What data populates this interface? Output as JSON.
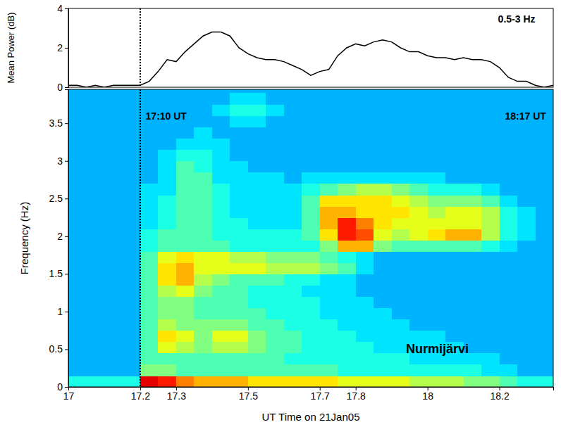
{
  "chart_data": [
    {
      "type": "line",
      "ylabel": "Mean Power (dB)",
      "xlim": [
        17,
        18.35
      ],
      "ylim": [
        0,
        4
      ],
      "yticks": [
        0,
        2,
        4
      ],
      "tick_labels": "y",
      "annotations": [
        {
          "text": "0.5-3 Hz",
          "x": 18.3,
          "y": 3.3
        }
      ],
      "reference_lines": [
        {
          "x": 17.2,
          "line_style": "dotted"
        }
      ],
      "x": [
        17,
        17.025,
        17.05,
        17.075,
        17.1,
        17.125,
        17.15,
        17.175,
        17.2,
        17.225,
        17.25,
        17.275,
        17.3,
        17.325,
        17.35,
        17.375,
        17.4,
        17.425,
        17.45,
        17.475,
        17.5,
        17.525,
        17.55,
        17.575,
        17.6,
        17.625,
        17.65,
        17.675,
        17.7,
        17.725,
        17.75,
        17.775,
        17.8,
        17.825,
        17.85,
        17.875,
        17.9,
        17.925,
        17.95,
        17.975,
        18,
        18.025,
        18.05,
        18.075,
        18.1,
        18.125,
        18.15,
        18.175,
        18.2,
        18.225,
        18.25,
        18.275,
        18.3,
        18.325,
        18.35
      ],
      "series": [
        {
          "color": "#000000",
          "values": [
            0.1,
            0.1,
            0,
            0.1,
            0,
            0.1,
            0.1,
            0.1,
            0.1,
            0.3,
            0.8,
            1.4,
            1.3,
            1.8,
            2.2,
            2.6,
            2.8,
            2.8,
            2.6,
            2,
            1.7,
            1.5,
            1.4,
            1.4,
            1.3,
            1.1,
            0.9,
            0.6,
            0.8,
            0.9,
            1.6,
            2,
            2.2,
            2.1,
            2.3,
            2.4,
            2.3,
            2,
            1.8,
            1.8,
            1.6,
            1.5,
            1.5,
            1.4,
            1.5,
            1.4,
            1.4,
            1.3,
            1,
            0.5,
            0.3,
            0.3,
            0.1,
            0,
            0.1
          ]
        }
      ]
    },
    {
      "type": "heatmap",
      "xlabel": "UT Time on 21Jan05",
      "ylabel": "Frequency (Hz)",
      "xlim": [
        17,
        18.35
      ],
      "ylim": [
        0,
        3.95
      ],
      "xticks": [
        17,
        17.2,
        17.3,
        17.5,
        17.7,
        17.8,
        18,
        18.2
      ],
      "yticks": [
        0,
        0.5,
        1,
        1.5,
        2,
        2.5,
        3,
        3.5
      ],
      "annotations": [
        {
          "text": "17:10 UT",
          "x": 17.215,
          "y": 3.55
        },
        {
          "text": "18:17 UT",
          "x": 18.33,
          "y": 3.55
        },
        {
          "text": "Nurmijärvi",
          "x": 17.94,
          "y": 0.45
        }
      ],
      "reference_lines": [
        {
          "x": 17.2,
          "line_style": "dotted"
        }
      ],
      "color_range": [
        0,
        10
      ],
      "x_bins": [
        17,
        17.05,
        17.1,
        17.15,
        17.2,
        17.25,
        17.3,
        17.35,
        17.4,
        17.45,
        17.5,
        17.55,
        17.6,
        17.65,
        17.7,
        17.75,
        17.8,
        17.85,
        17.9,
        17.95,
        18,
        18.05,
        18.1,
        18.15,
        18.2,
        18.25,
        18.3,
        18.35
      ],
      "y_bins": [
        0,
        0.15,
        0.3,
        0.45,
        0.6,
        0.75,
        0.9,
        1.05,
        1.2,
        1.35,
        1.5,
        1.65,
        1.8,
        1.95,
        2.1,
        2.25,
        2.4,
        2.55,
        2.7,
        2.85,
        3,
        3.15,
        3.3,
        3.45,
        3.6,
        3.75,
        3.9
      ],
      "cells": [
        [
          4,
          4,
          4,
          4,
          9,
          8.5,
          7.5,
          7,
          7,
          7,
          6.5,
          6.5,
          6.5,
          6.5,
          6.5,
          6,
          6,
          6,
          6,
          5.5,
          5.5,
          5.5,
          5,
          5,
          4.5,
          4,
          4
        ],
        [
          3,
          3,
          3,
          3,
          5,
          5,
          4.5,
          4.5,
          4.5,
          4.5,
          4.5,
          4.5,
          4.5,
          4.5,
          4.5,
          4,
          4,
          4,
          4,
          4,
          4,
          4,
          4,
          3.5,
          3.5,
          3,
          3
        ],
        [
          3,
          3,
          3,
          3,
          4.5,
          4.5,
          4.5,
          4.5,
          4.5,
          4.5,
          4.5,
          4.5,
          4,
          4,
          4,
          4,
          4,
          4,
          4,
          3.5,
          3.5,
          3.5,
          3.5,
          3.5,
          3,
          3,
          3
        ],
        [
          3,
          3,
          3,
          3,
          4.5,
          6,
          5.5,
          5,
          5.5,
          5.5,
          5,
          4.5,
          4.5,
          4,
          4,
          4,
          4,
          3.5,
          3.5,
          3.5,
          3.5,
          3.5,
          3,
          3,
          3,
          3,
          3
        ],
        [
          3,
          3,
          3,
          3,
          4.5,
          6.5,
          6,
          5,
          6,
          6,
          5,
          4.5,
          4.5,
          4,
          4,
          4,
          3.5,
          3.5,
          3.5,
          3.5,
          3.5,
          3,
          3,
          3,
          3,
          3,
          3
        ],
        [
          3,
          3,
          3,
          3,
          4.5,
          5.5,
          5,
          5,
          5,
          5,
          4.5,
          4.5,
          4,
          4,
          4,
          3.5,
          3.5,
          3.5,
          3.5,
          3,
          3,
          3,
          3,
          3,
          3,
          3,
          3
        ],
        [
          3,
          3,
          3,
          3,
          4.5,
          5,
          5,
          4.5,
          4.5,
          4.5,
          4.5,
          4,
          4,
          4,
          3.5,
          3.5,
          3.5,
          3.5,
          3,
          3,
          3,
          3,
          3,
          3,
          3,
          3,
          3
        ],
        [
          3,
          3,
          3,
          3,
          4.5,
          5,
          5,
          4.5,
          4.5,
          4.5,
          4,
          4,
          4,
          4,
          3.5,
          3.5,
          3.5,
          3,
          3,
          3,
          3,
          3,
          3,
          3,
          3,
          3,
          3
        ],
        [
          3,
          3,
          3,
          3,
          4.5,
          5.5,
          6,
          5,
          4.5,
          4.5,
          4,
          4,
          4,
          3.5,
          3.5,
          3.5,
          3,
          3,
          3,
          3,
          3,
          3,
          3,
          3,
          3,
          3,
          3
        ],
        [
          3,
          3,
          3,
          3,
          4.5,
          6.5,
          7,
          5.5,
          5,
          4.5,
          4.5,
          4.5,
          4,
          4,
          3.5,
          3.5,
          3,
          3,
          3,
          3,
          3,
          3,
          3,
          3,
          3,
          3,
          3
        ],
        [
          3,
          3,
          3,
          3,
          4.5,
          6.5,
          7,
          6,
          6,
          6,
          6,
          5.5,
          5.5,
          5.5,
          5,
          4.5,
          3.5,
          3,
          3,
          3,
          3,
          3,
          3,
          3,
          3,
          3,
          3
        ],
        [
          3,
          3,
          3,
          3,
          4.5,
          6,
          6.5,
          6,
          6,
          5.5,
          5.5,
          5,
          5,
          5,
          4.5,
          4,
          3.5,
          3,
          3,
          3,
          3,
          3,
          3,
          3,
          3,
          3,
          3
        ],
        [
          3,
          3,
          3,
          3,
          4,
          4.5,
          4.5,
          4.5,
          4.5,
          4,
          4,
          4,
          4,
          4,
          5,
          7,
          7,
          5,
          4.5,
          4.5,
          4.5,
          4.5,
          4.5,
          4,
          3.5,
          3,
          3
        ],
        [
          3,
          3,
          3,
          3,
          4,
          4.5,
          4.5,
          4.5,
          4,
          4,
          4,
          4,
          4,
          4.5,
          6.5,
          8.5,
          8,
          6,
          5.5,
          6,
          6.5,
          7,
          7,
          5.5,
          4,
          3.5,
          3
        ],
        [
          3,
          3,
          3,
          3,
          3.5,
          4,
          4.5,
          4.5,
          4,
          4,
          3.5,
          3.5,
          3.5,
          4.5,
          7,
          8.5,
          7.5,
          6.5,
          6,
          6,
          6,
          6,
          6,
          5.5,
          4,
          3.5,
          3
        ],
        [
          3,
          3,
          3,
          3,
          3.5,
          4,
          4.5,
          4.5,
          4,
          3.5,
          3.5,
          3.5,
          3.5,
          4.5,
          7,
          7,
          6.5,
          6.5,
          6.5,
          6,
          5.5,
          6,
          6,
          5.5,
          4,
          3.5,
          3
        ],
        [
          3,
          3,
          3,
          3,
          3.5,
          4,
          4.5,
          4.5,
          4,
          3.5,
          3.5,
          3.5,
          3.5,
          4.5,
          6.5,
          6.5,
          6.5,
          6.5,
          6,
          5.5,
          5,
          5,
          5,
          4.5,
          3.5,
          3,
          3
        ],
        [
          3,
          3,
          3,
          3,
          3.5,
          3.5,
          4.5,
          4.5,
          4,
          3.5,
          3.5,
          3.5,
          3.5,
          4,
          4.5,
          5,
          5.5,
          5.5,
          5,
          4.5,
          4,
          4,
          4,
          3.5,
          3,
          3,
          3
        ],
        [
          3,
          3,
          3,
          3,
          3,
          3.5,
          4.5,
          4.5,
          3.5,
          3.5,
          3.5,
          3.5,
          3,
          3.5,
          3.5,
          3.5,
          3.5,
          3.5,
          3.5,
          3.5,
          3.5,
          3,
          3,
          3,
          3,
          3,
          3
        ],
        [
          3,
          3,
          3,
          3,
          3,
          3.5,
          4.5,
          4,
          3.5,
          3.5,
          3,
          3,
          3,
          3,
          3,
          3,
          3,
          3,
          3,
          3,
          3,
          3,
          3,
          3,
          3,
          3,
          3
        ],
        [
          3,
          3,
          3,
          3,
          3,
          3.5,
          4,
          4,
          3.5,
          3,
          3,
          3,
          3,
          3,
          3,
          3,
          3,
          3,
          3,
          3,
          3,
          3,
          3,
          3,
          3,
          3,
          3
        ],
        [
          3,
          3,
          3,
          3,
          3,
          3,
          3.5,
          3.5,
          3.5,
          3,
          3,
          3,
          3,
          3,
          3,
          3,
          3,
          3,
          3,
          3,
          3,
          3,
          3,
          3,
          3,
          3,
          3
        ],
        [
          3,
          3,
          3,
          3,
          3,
          3,
          3,
          3.5,
          3,
          3,
          3,
          3,
          3,
          3,
          3,
          3,
          3,
          3,
          3,
          3,
          3,
          3,
          3,
          3,
          3,
          3,
          3
        ],
        [
          3,
          3,
          3,
          3,
          3,
          3,
          3,
          3,
          3,
          3.5,
          3.5,
          3,
          3,
          3,
          3,
          3,
          3,
          3,
          3,
          3,
          3,
          3,
          3,
          3,
          3,
          3,
          3
        ],
        [
          3,
          3,
          3,
          3,
          3,
          3,
          3,
          3,
          3.5,
          4,
          4,
          3.5,
          3,
          3,
          3,
          3,
          3,
          3,
          3,
          3,
          3,
          3,
          3,
          3,
          3,
          3,
          3
        ],
        [
          3,
          3,
          3,
          3,
          3,
          3,
          3,
          3,
          3,
          3.5,
          3.5,
          3,
          3,
          3,
          3,
          3,
          3,
          3,
          3,
          3,
          3,
          3,
          3,
          3,
          3,
          3,
          3
        ]
      ]
    }
  ]
}
